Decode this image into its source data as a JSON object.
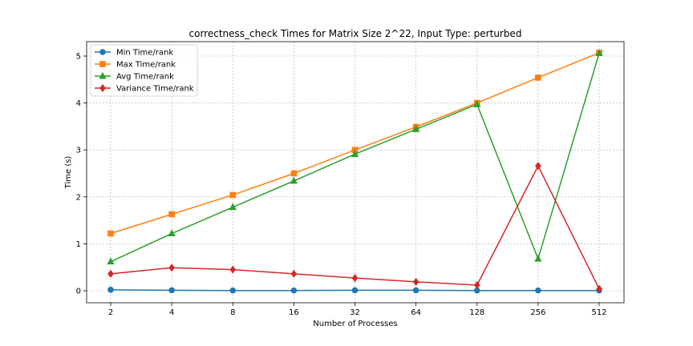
{
  "chart_data": {
    "type": "line",
    "title": "correctness_check Times for Matrix Size 2^22, Input Type: perturbed",
    "xlabel": "Number of Processes",
    "ylabel": "Time (s)",
    "categories": [
      "2",
      "4",
      "8",
      "16",
      "32",
      "64",
      "128",
      "256",
      "512"
    ],
    "ylim": [
      -0.25,
      5.3
    ],
    "yticks": [
      0,
      1,
      2,
      3,
      4,
      5
    ],
    "grid": true,
    "legend_position": "top-left",
    "series": [
      {
        "name": "Min Time/rank",
        "color": "#1f77b4",
        "marker": "circle",
        "values": [
          0.02,
          0.01,
          0.005,
          0.005,
          0.01,
          0.01,
          0.005,
          0.005,
          0.005
        ]
      },
      {
        "name": "Max Time/rank",
        "color": "#ff7f0e",
        "marker": "square",
        "values": [
          1.22,
          1.63,
          2.04,
          2.5,
          3.0,
          3.49,
          4.0,
          4.54,
          5.07
        ]
      },
      {
        "name": "Avg Time/rank",
        "color": "#2ca02c",
        "marker": "triangle",
        "values": [
          0.62,
          1.22,
          1.78,
          2.34,
          2.91,
          3.44,
          3.97,
          0.68,
          5.06
        ]
      },
      {
        "name": "Variance Time/rank",
        "color": "#d62728",
        "marker": "diamond",
        "values": [
          0.36,
          0.49,
          0.45,
          0.36,
          0.27,
          0.19,
          0.12,
          2.66,
          0.04
        ]
      }
    ]
  }
}
